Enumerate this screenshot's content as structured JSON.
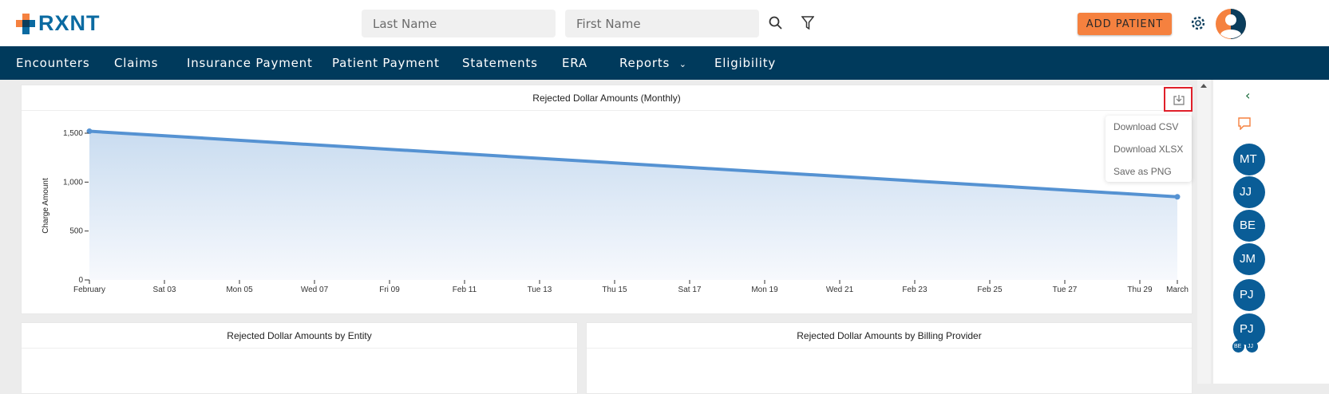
{
  "header": {
    "logo": "RXNT",
    "last_name_placeholder": "Last Name",
    "first_name_placeholder": "First Name",
    "add_patient": "ADD PATIENT"
  },
  "nav": {
    "items": [
      "Encounters",
      "Claims",
      "Insurance Payment",
      "Patient Payment",
      "Statements",
      "ERA",
      "Reports",
      "Eligibility"
    ]
  },
  "chart_card": {
    "title": "Rejected Dollar Amounts (Monthly)",
    "menu": [
      "Download CSV",
      "Download XLSX",
      "Save as PNG"
    ]
  },
  "bottom_cards": [
    "Rejected Dollar Amounts by Entity",
    "Rejected Dollar Amounts by Billing Provider"
  ],
  "sidebar": {
    "avatars": [
      "MT",
      "JJ",
      "BE",
      "JM",
      "PJ",
      "PJ"
    ],
    "small_avatars": [
      "BE",
      "JJ"
    ]
  },
  "colors": {
    "nav": "#003a5c",
    "accent": "#f5813f",
    "line": "#5592d2",
    "avatar": "#0a5d97"
  },
  "chart_data": {
    "type": "area",
    "title": "Rejected Dollar Amounts (Monthly)",
    "ylabel": "Charge Amount",
    "xlabel": "",
    "ylim": [
      0,
      1500
    ],
    "yticks": [
      "0",
      "500",
      "1,000",
      "1,500"
    ],
    "ytick_values": [
      0,
      500,
      1000,
      1500
    ],
    "xtick_labels": [
      "February",
      "Sat 03",
      "Mon 05",
      "Wed 07",
      "Fri 09",
      "Feb 11",
      "Tue 13",
      "Thu 15",
      "Sat 17",
      "Mon 19",
      "Wed 21",
      "Feb 23",
      "Feb 25",
      "Tue 27",
      "Thu 29",
      "March"
    ],
    "xtick_days": [
      1,
      3,
      5,
      7,
      9,
      11,
      13,
      15,
      17,
      19,
      21,
      23,
      25,
      27,
      29,
      30
    ],
    "x": [
      "February",
      "March"
    ],
    "values": [
      1520,
      850
    ]
  }
}
